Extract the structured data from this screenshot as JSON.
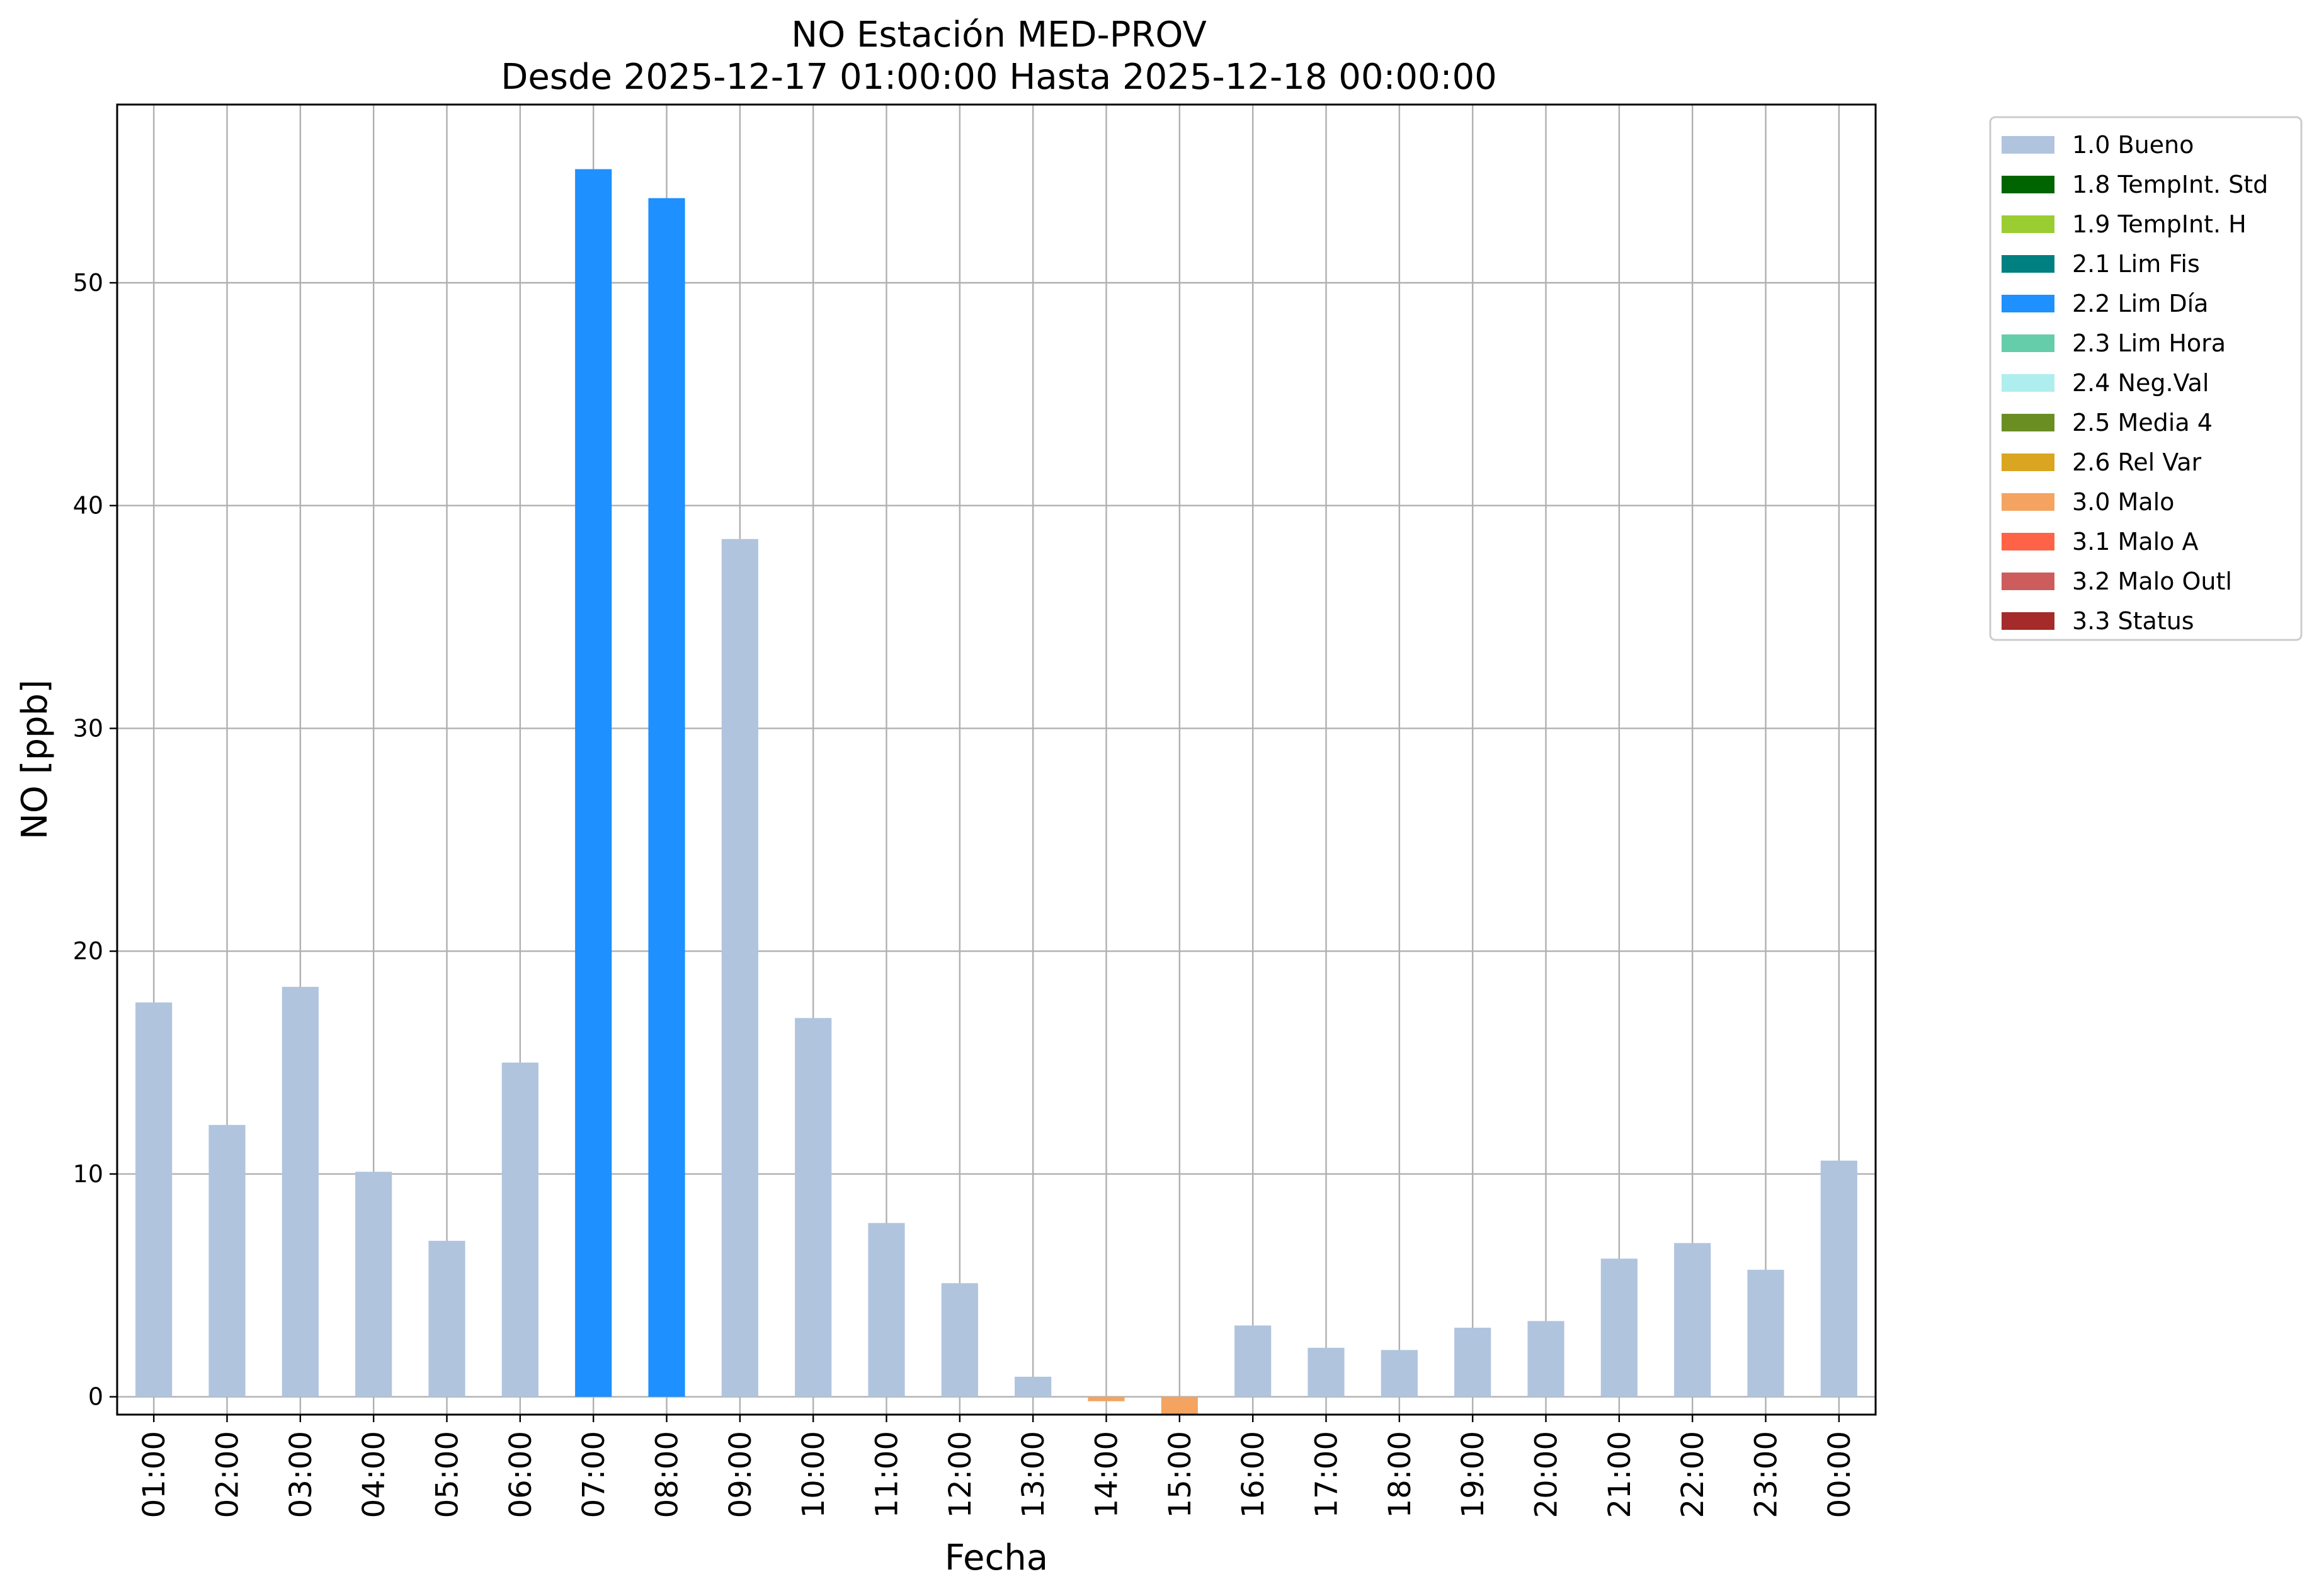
{
  "chart_data": {
    "type": "bar",
    "title": "NO Estación MED-PROV",
    "subtitle": "Desde 2025-12-17 01:00:00 Hasta 2025-12-18 00:00:00",
    "xlabel": "Fecha",
    "ylabel": "NO [ppb]",
    "ylim": [
      -0.8,
      58
    ],
    "yticks": [
      0,
      10,
      20,
      30,
      40,
      50
    ],
    "grid": true,
    "legend_position": "outside-top-right",
    "categories": [
      "01:00",
      "02:00",
      "03:00",
      "04:00",
      "05:00",
      "06:00",
      "07:00",
      "08:00",
      "09:00",
      "10:00",
      "11:00",
      "12:00",
      "13:00",
      "14:00",
      "15:00",
      "16:00",
      "17:00",
      "18:00",
      "19:00",
      "20:00",
      "21:00",
      "22:00",
      "23:00",
      "00:00"
    ],
    "values": [
      17.7,
      12.2,
      18.4,
      10.1,
      7.0,
      15.0,
      55.1,
      53.8,
      38.5,
      17.0,
      7.8,
      5.1,
      0.9,
      -0.2,
      -0.8,
      3.2,
      2.2,
      2.1,
      3.1,
      3.4,
      6.2,
      6.9,
      5.7,
      10.6
    ],
    "flags": [
      "1.0 Bueno",
      "1.0 Bueno",
      "1.0 Bueno",
      "1.0 Bueno",
      "1.0 Bueno",
      "1.0 Bueno",
      "2.2 Lim Día",
      "2.2 Lim Día",
      "1.0 Bueno",
      "1.0 Bueno",
      "1.0 Bueno",
      "1.0 Bueno",
      "1.0 Bueno",
      "3.0 Malo",
      "3.0 Malo",
      "1.0 Bueno",
      "1.0 Bueno",
      "1.0 Bueno",
      "1.0 Bueno",
      "1.0 Bueno",
      "1.0 Bueno",
      "1.0 Bueno",
      "1.0 Bueno",
      "1.0 Bueno"
    ],
    "legend": [
      {
        "label": "1.0 Bueno",
        "color": "#b0c4de"
      },
      {
        "label": "1.8 TempInt. Std",
        "color": "#006400"
      },
      {
        "label": "1.9 TempInt. H",
        "color": "#9acd32"
      },
      {
        "label": "2.1 Lim Fis",
        "color": "#008080"
      },
      {
        "label": "2.2 Lim Día",
        "color": "#1e90ff"
      },
      {
        "label": "2.3 Lim Hora",
        "color": "#66cdaa"
      },
      {
        "label": "2.4 Neg.Val",
        "color": "#afeeee"
      },
      {
        "label": "2.5 Media 4",
        "color": "#6b8e23"
      },
      {
        "label": "2.6 Rel Var",
        "color": "#daa520"
      },
      {
        "label": "3.0 Malo",
        "color": "#f4a460"
      },
      {
        "label": "3.1 Malo A",
        "color": "#ff6347"
      },
      {
        "label": "3.2 Malo Outl",
        "color": "#cd5c5c"
      },
      {
        "label": "3.3 Status",
        "color": "#a52a2a"
      }
    ]
  }
}
